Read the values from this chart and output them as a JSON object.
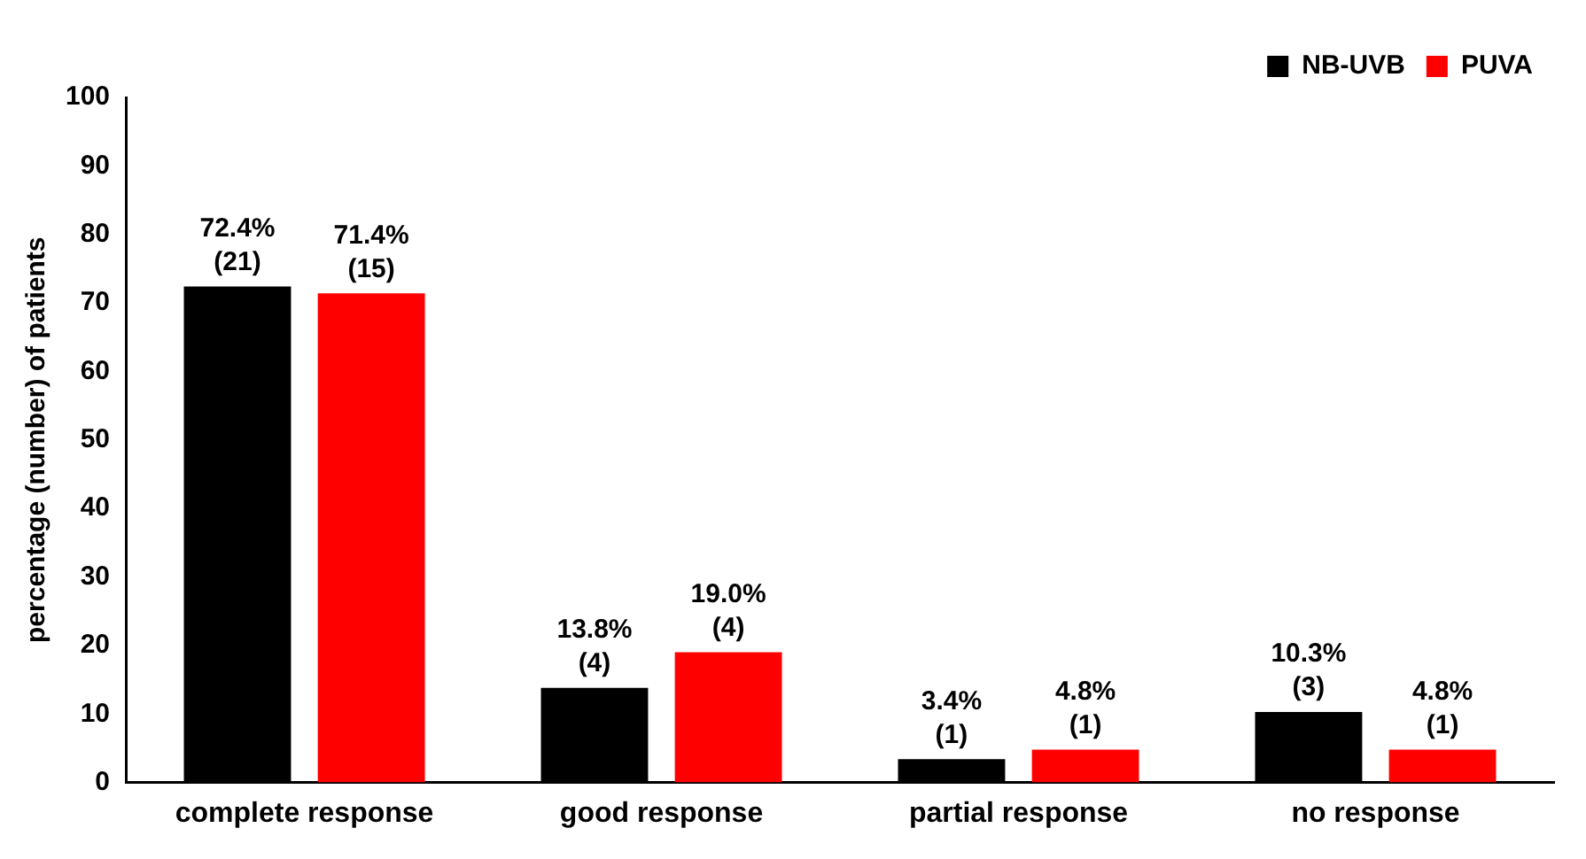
{
  "chart_data": {
    "type": "bar",
    "ylabel": "percentage (number) of patients",
    "categories": [
      "complete response",
      "good response",
      "partial response",
      "no response"
    ],
    "series": [
      {
        "name": "NB-UVB",
        "color": "#000000",
        "values": [
          72.4,
          13.8,
          3.4,
          10.3
        ],
        "value_labels": [
          "72.4%\n(21)",
          "13.8%\n(4)",
          "3.4%\n(1)",
          "10.3%\n(3)"
        ]
      },
      {
        "name": "PUVA",
        "color": "#ff0000",
        "values": [
          71.4,
          19.0,
          4.8,
          4.8
        ],
        "value_labels": [
          "71.4%\n(15)",
          "19.0%\n(4)",
          "4.8%\n(1)",
          "4.8%\n(1)"
        ]
      }
    ],
    "ylim": [
      0,
      100
    ],
    "yticks": [
      0,
      10,
      20,
      30,
      40,
      50,
      60,
      70,
      80,
      90,
      100
    ],
    "grid": false,
    "legend": "top right"
  }
}
